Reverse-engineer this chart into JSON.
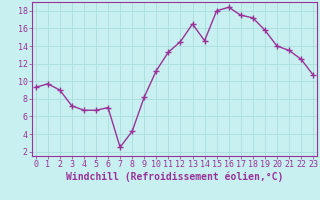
{
  "x": [
    0,
    1,
    2,
    3,
    4,
    5,
    6,
    7,
    8,
    9,
    10,
    11,
    12,
    13,
    14,
    15,
    16,
    17,
    18,
    19,
    20,
    21,
    22,
    23
  ],
  "y": [
    9.3,
    9.7,
    9.0,
    7.2,
    6.7,
    6.7,
    7.0,
    2.5,
    4.3,
    8.2,
    11.2,
    13.3,
    14.5,
    16.5,
    14.6,
    18.0,
    18.4,
    17.5,
    17.2,
    15.8,
    14.0,
    13.5,
    12.5,
    10.7
  ],
  "line_color": "#993399",
  "marker": "+",
  "marker_size": 4,
  "marker_linewidth": 1.0,
  "line_width": 1.0,
  "xlabel": "Windchill (Refroidissement éolien,°C)",
  "xlabel_fontsize": 7,
  "bg_color": "#c8f0f0",
  "grid_color": "#aadddd",
  "ylim": [
    1.5,
    19.0
  ],
  "yticks": [
    2,
    4,
    6,
    8,
    10,
    12,
    14,
    16,
    18
  ],
  "xticks": [
    0,
    1,
    2,
    3,
    4,
    5,
    6,
    7,
    8,
    9,
    10,
    11,
    12,
    13,
    14,
    15,
    16,
    17,
    18,
    19,
    20,
    21,
    22,
    23
  ],
  "tick_fontsize": 6,
  "tick_color": "#993399",
  "border_color": "#993399",
  "xlim": [
    -0.3,
    23.3
  ]
}
